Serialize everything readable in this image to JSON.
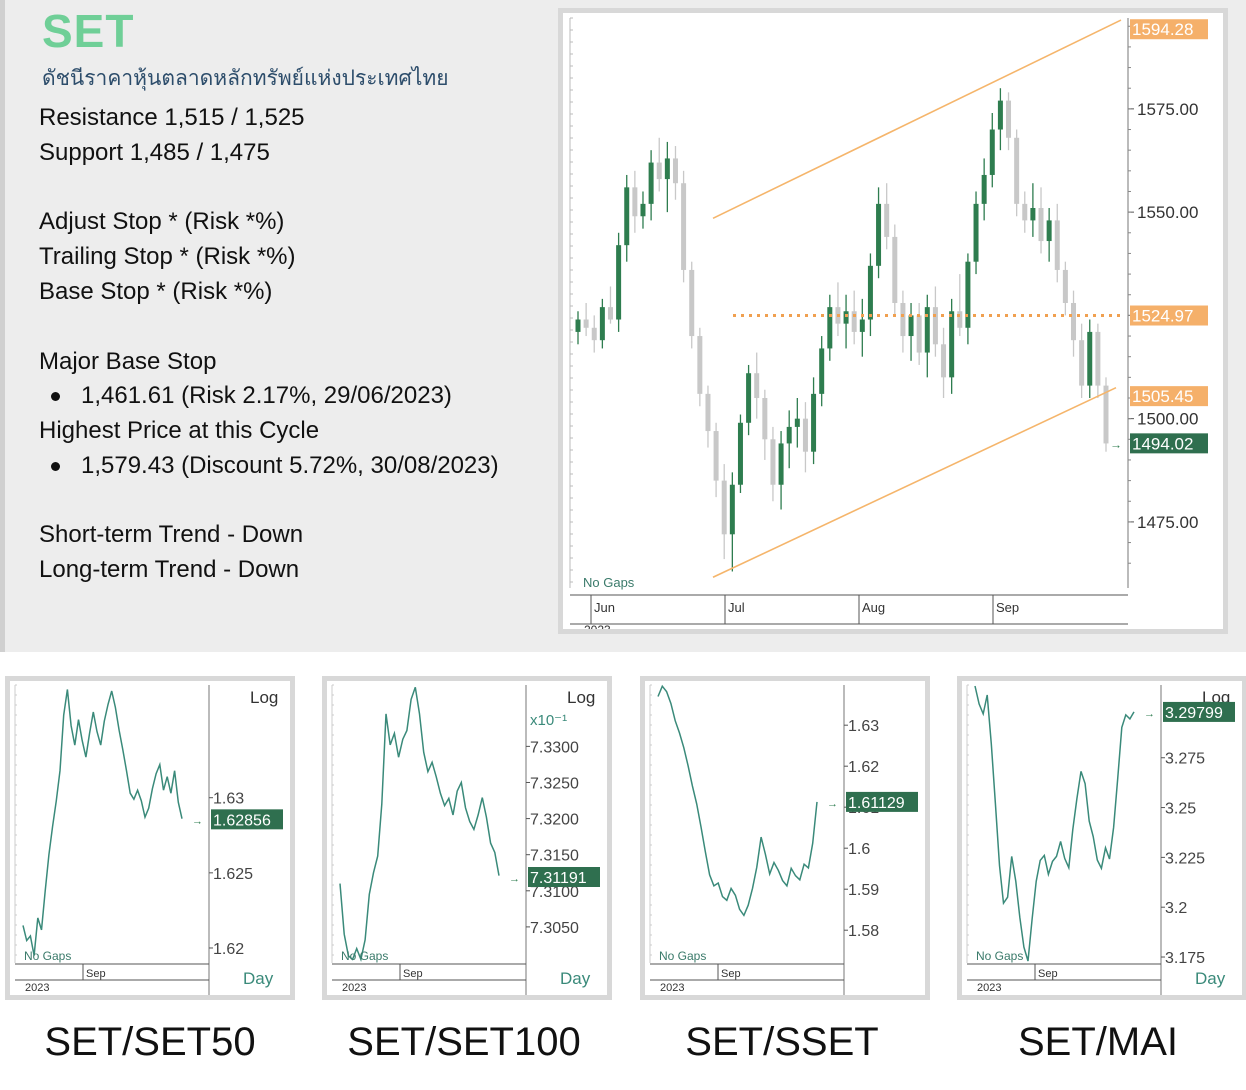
{
  "header": {
    "title": "SET",
    "subtitle": "ดัชนีราคาหุ้นตลาดหลักทรัพย์แห่งประเทศไทย"
  },
  "info": {
    "resistance": "Resistance 1,515 / 1,525",
    "support": "Support 1,485 / 1,475",
    "adjust_stop": "Adjust Stop * (Risk *%)",
    "trailing_stop": "Trailing Stop * (Risk *%)",
    "base_stop": "Base Stop * (Risk *%)",
    "major_base_stop_label": "Major Base Stop",
    "major_base_stop_value": "1,461.61 (Risk 2.17%, 29/06/2023)",
    "highest_label": "Highest Price at this Cycle",
    "highest_value": "1,579.43 (Discount 5.72%, 30/08/2023)",
    "short_trend": "Short-term Trend - Down",
    "long_trend": "Long-term Trend - Down"
  },
  "colors": {
    "accent": "#6fcf97",
    "up_candle": "#2e7d4f",
    "down_candle": "#c8c8c8",
    "channel": "#f5b56b",
    "dotted": "#f0a050",
    "price_tag": "#2f6f4f",
    "orange_tag": "#f5b06a",
    "mini_line": "#3a8a7a"
  },
  "chart_data": [
    {
      "type": "candlestick",
      "title": "SET",
      "y_ticks": [
        "1475.00",
        "1500.00",
        "1525.00",
        "1550.00",
        "1575.00"
      ],
      "ylim": [
        1459,
        1597
      ],
      "x_ticks": [
        "Jun",
        "Jul",
        "Aug",
        "Sep"
      ],
      "year_label": "2023",
      "note": "No Gaps",
      "tags": {
        "upper_channel": "1594.28",
        "horizontal": "1524.97",
        "lower_channel": "1505.45",
        "last": "1494.02"
      },
      "horizontal_level": 1524.97,
      "channel_upper": {
        "start": 1548.5,
        "end": 1596.5
      },
      "channel_lower": {
        "start": 1461.6,
        "end": 1507.5
      },
      "candles": [
        [
          1521,
          1526,
          1518,
          1524
        ],
        [
          1524,
          1528,
          1520,
          1522
        ],
        [
          1522,
          1525,
          1516,
          1519
        ],
        [
          1519,
          1529,
          1517,
          1527
        ],
        [
          1527,
          1532,
          1523,
          1524
        ],
        [
          1524,
          1545,
          1521,
          1542
        ],
        [
          1542,
          1559,
          1538,
          1556
        ],
        [
          1556,
          1560,
          1545,
          1549
        ],
        [
          1549,
          1555,
          1546,
          1552
        ],
        [
          1552,
          1565,
          1548,
          1562
        ],
        [
          1562,
          1568,
          1555,
          1558
        ],
        [
          1558,
          1567,
          1550,
          1563
        ],
        [
          1563,
          1566,
          1553,
          1557
        ],
        [
          1557,
          1560,
          1533,
          1536
        ],
        [
          1536,
          1538,
          1517,
          1520
        ],
        [
          1520,
          1522,
          1503,
          1506
        ],
        [
          1506,
          1508,
          1493,
          1497
        ],
        [
          1497,
          1499,
          1481,
          1485
        ],
        [
          1485,
          1489,
          1466,
          1472
        ],
        [
          1472,
          1487,
          1463,
          1484
        ],
        [
          1484,
          1501,
          1482,
          1499
        ],
        [
          1499,
          1513,
          1496,
          1511
        ],
        [
          1511,
          1516,
          1500,
          1505
        ],
        [
          1505,
          1507,
          1490,
          1495
        ],
        [
          1495,
          1498,
          1480,
          1484
        ],
        [
          1484,
          1497,
          1478,
          1494
        ],
        [
          1494,
          1502,
          1488,
          1498
        ],
        [
          1498,
          1505,
          1493,
          1500
        ],
        [
          1500,
          1504,
          1487,
          1492
        ],
        [
          1492,
          1510,
          1489,
          1506
        ],
        [
          1506,
          1520,
          1503,
          1517
        ],
        [
          1517,
          1530,
          1514,
          1527
        ],
        [
          1527,
          1533,
          1520,
          1523
        ],
        [
          1523,
          1530,
          1517,
          1526
        ],
        [
          1526,
          1531,
          1518,
          1521
        ],
        [
          1521,
          1529,
          1515,
          1524
        ],
        [
          1524,
          1540,
          1520,
          1537
        ],
        [
          1537,
          1556,
          1534,
          1552
        ],
        [
          1552,
          1557,
          1541,
          1544
        ],
        [
          1544,
          1547,
          1525,
          1528
        ],
        [
          1528,
          1531,
          1516,
          1520
        ],
        [
          1520,
          1528,
          1514,
          1525
        ],
        [
          1525,
          1528,
          1513,
          1516
        ],
        [
          1516,
          1530,
          1510,
          1527
        ],
        [
          1527,
          1532,
          1515,
          1518
        ],
        [
          1518,
          1522,
          1505,
          1510
        ],
        [
          1510,
          1529,
          1506,
          1526
        ],
        [
          1526,
          1535,
          1520,
          1522
        ],
        [
          1522,
          1540,
          1518,
          1538
        ],
        [
          1538,
          1555,
          1535,
          1552
        ],
        [
          1552,
          1563,
          1548,
          1559
        ],
        [
          1559,
          1574,
          1556,
          1570
        ],
        [
          1570,
          1580,
          1565,
          1577
        ],
        [
          1577,
          1579,
          1565,
          1568
        ],
        [
          1568,
          1570,
          1549,
          1552
        ],
        [
          1552,
          1555,
          1545,
          1548
        ],
        [
          1548,
          1557,
          1544,
          1551
        ],
        [
          1551,
          1556,
          1540,
          1543
        ],
        [
          1543,
          1551,
          1538,
          1548
        ],
        [
          1548,
          1552,
          1533,
          1536
        ],
        [
          1536,
          1538,
          1525,
          1528
        ],
        [
          1528,
          1531,
          1515,
          1519
        ],
        [
          1519,
          1523,
          1505,
          1508
        ],
        [
          1508,
          1524,
          1505,
          1521
        ],
        [
          1521,
          1523,
          1505,
          1508
        ],
        [
          1508,
          1510,
          1492,
          1494
        ]
      ]
    },
    {
      "type": "line",
      "title": "SET/SET50",
      "scale": "Log",
      "x_label": "Day",
      "y_ticks": [
        "1.62",
        "1.625",
        "1.63"
      ],
      "last_value": "1.62856",
      "year_label": "2023",
      "x_ticks": [
        "Sep"
      ],
      "note": "No Gaps",
      "ylim": [
        1.619,
        1.6375
      ],
      "values": [
        1.6215,
        1.6205,
        1.6208,
        1.6195,
        1.622,
        1.6212,
        1.6238,
        1.6262,
        1.6281,
        1.6298,
        1.6318,
        1.6355,
        1.6372,
        1.6348,
        1.6335,
        1.6352,
        1.6338,
        1.6327,
        1.6343,
        1.6357,
        1.6344,
        1.6335,
        1.6351,
        1.6362,
        1.6371,
        1.636,
        1.6345,
        1.6332,
        1.6318,
        1.6303,
        1.6299,
        1.6305,
        1.6298,
        1.6287,
        1.6293,
        1.6306,
        1.6316,
        1.6322,
        1.6305,
        1.6314,
        1.6303,
        1.6318,
        1.6297,
        1.6286
      ]
    },
    {
      "type": "line",
      "title": "SET/SET100",
      "scale": "Log",
      "x_label": "Day",
      "multiplier": "x10⁻¹",
      "y_ticks": [
        "7.3050",
        "7.3100",
        "7.3150",
        "7.3200",
        "7.3250",
        "7.3300"
      ],
      "last_value": "7.31191",
      "year_label": "2023",
      "x_ticks": [
        "Sep"
      ],
      "note": "No Gaps",
      "ylim": [
        7.3,
        7.3385
      ],
      "values": [
        7.311,
        7.304,
        7.301,
        7.3005,
        7.302,
        7.3005,
        7.3032,
        7.3095,
        7.3125,
        7.3148,
        7.322,
        7.3345,
        7.3302,
        7.3318,
        7.3285,
        7.331,
        7.3322,
        7.3365,
        7.3382,
        7.3345,
        7.3292,
        7.3265,
        7.3278,
        7.3258,
        7.3235,
        7.3218,
        7.3228,
        7.3205,
        7.3238,
        7.325,
        7.3215,
        7.3196,
        7.3185,
        7.3205,
        7.3229,
        7.3202,
        7.3166,
        7.3153,
        7.3121
      ]
    },
    {
      "type": "line",
      "title": "SET/SSET",
      "scale": "",
      "x_label": "",
      "y_ticks": [
        "1.58",
        "1.59",
        "1.6",
        "1.61",
        "1.62",
        "1.63"
      ],
      "last_value": "1.61129",
      "year_label": "2023",
      "x_ticks": [
        "Sep"
      ],
      "note": "No Gaps",
      "ylim": [
        1.572,
        1.6398
      ],
      "values": [
        1.637,
        1.6395,
        1.6382,
        1.6353,
        1.6311,
        1.6281,
        1.6245,
        1.6201,
        1.6152,
        1.6108,
        1.6052,
        1.5992,
        1.5935,
        1.5908,
        1.5915,
        1.5882,
        1.5873,
        1.5902,
        1.5885,
        1.5851,
        1.5836,
        1.5861,
        1.5902,
        1.5954,
        1.6027,
        1.5985,
        1.5937,
        1.5965,
        1.5946,
        1.5921,
        1.5908,
        1.5951,
        1.5933,
        1.5923,
        1.5961,
        1.5952,
        1.6012,
        1.6113
      ]
    },
    {
      "type": "line",
      "title": "SET/MAI",
      "scale": "Log",
      "x_label": "Day",
      "y_ticks": [
        "3.175",
        "3.2",
        "3.225",
        "3.25",
        "3.275"
      ],
      "last_value": "3.29799",
      "year_label": "2023",
      "x_ticks": [
        "Sep"
      ],
      "note": "No Gaps",
      "ylim": [
        3.172,
        3.3115
      ],
      "values": [
        3.311,
        3.302,
        3.297,
        3.3065,
        3.282,
        3.252,
        3.221,
        3.202,
        3.205,
        3.2255,
        3.213,
        3.195,
        3.18,
        3.173,
        3.194,
        3.213,
        3.2235,
        3.226,
        3.2165,
        3.223,
        3.2255,
        3.233,
        3.2245,
        3.2198,
        3.239,
        3.2545,
        3.2682,
        3.262,
        3.2432,
        3.2355,
        3.2237,
        3.2195,
        3.2298,
        3.2242,
        3.24,
        3.2645,
        3.2902,
        3.2965,
        3.2945,
        3.298
      ]
    }
  ],
  "mini_labels": [
    "SET/SET50",
    "SET/SET100",
    "SET/SSET",
    "SET/MAI"
  ]
}
